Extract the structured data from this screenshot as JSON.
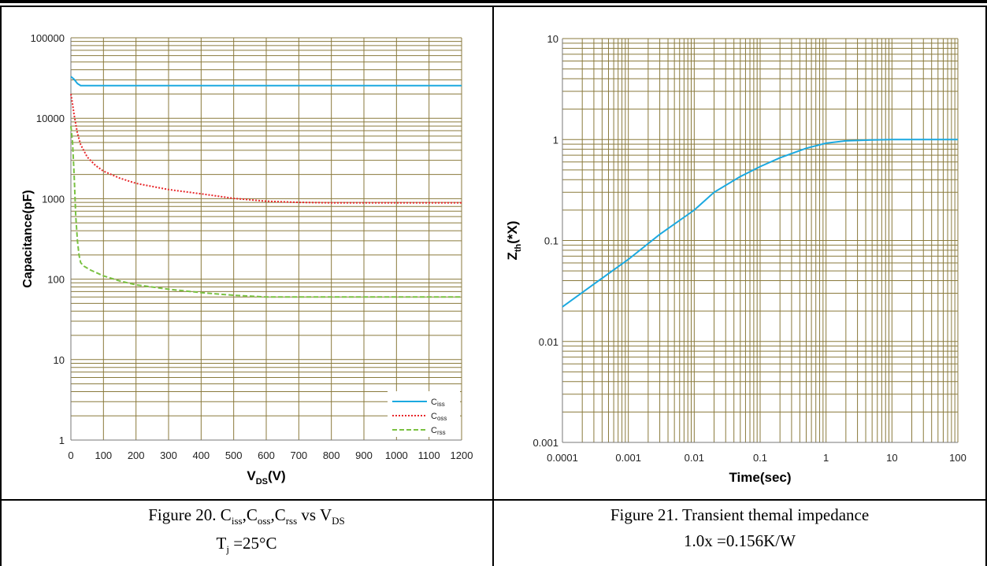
{
  "chart_data": [
    {
      "id": "cap",
      "type": "line",
      "xlabel": "V(V)",
      "xlabel_main": "V",
      "xlabel_sub": "DS",
      "xlabel_unit": "(V)",
      "ylabel": "Capacitance(pF)",
      "x_scale": "linear",
      "y_scale": "log",
      "xlim": [
        0,
        1200
      ],
      "ylim": [
        1,
        100000
      ],
      "x_ticks": [
        0,
        100,
        200,
        300,
        400,
        500,
        600,
        700,
        800,
        900,
        1000,
        1100,
        1200
      ],
      "y_tick_labels": [
        "1",
        "10",
        "100",
        "1000",
        "10000",
        "100000"
      ],
      "grid": true,
      "legend_position": "bottom-right",
      "series": [
        {
          "name": "C",
          "name_sub": "iss",
          "color": "#1ca9e0",
          "style": "solid",
          "x": [
            0,
            10,
            20,
            30,
            50,
            100,
            200,
            400,
            600,
            800,
            1000,
            1200
          ],
          "y": [
            33000,
            30500,
            27000,
            25500,
            25500,
            25500,
            25500,
            25500,
            25500,
            25500,
            25500,
            25500
          ]
        },
        {
          "name": "C",
          "name_sub": "oss",
          "color": "#e8282b",
          "style": "dotted",
          "x": [
            0,
            5,
            10,
            20,
            30,
            50,
            75,
            100,
            150,
            200,
            300,
            400,
            500,
            600,
            700,
            800,
            1000,
            1200
          ],
          "y": [
            20000,
            15000,
            11000,
            6500,
            4700,
            3300,
            2600,
            2200,
            1800,
            1550,
            1300,
            1150,
            1010,
            930,
            900,
            890,
            890,
            890
          ]
        },
        {
          "name": "C",
          "name_sub": "rss",
          "color": "#7ac142",
          "style": "dashed",
          "x": [
            0,
            5,
            10,
            15,
            20,
            25,
            30,
            40,
            60,
            100,
            150,
            200,
            300,
            400,
            500,
            600,
            700,
            800,
            1000,
            1200
          ],
          "y": [
            8000,
            5000,
            2000,
            600,
            300,
            200,
            160,
            145,
            130,
            110,
            95,
            85,
            75,
            68,
            63,
            60,
            60,
            60,
            60,
            60
          ]
        }
      ]
    },
    {
      "id": "zth",
      "type": "line",
      "xlabel": "Time(sec)",
      "ylabel": "Z(*X)",
      "ylabel_main": "Z",
      "ylabel_sub": "th",
      "ylabel_unit": "(*X)",
      "x_scale": "log",
      "y_scale": "log",
      "xlim": [
        0.0001,
        100
      ],
      "ylim": [
        0.001,
        10
      ],
      "x_tick_labels": [
        "0.0001",
        "0.001",
        "0.01",
        "0.1",
        "1",
        "10",
        "100"
      ],
      "y_tick_labels": [
        "0.001",
        "0.01",
        "0.1",
        "1",
        "10"
      ],
      "grid": true,
      "series": [
        {
          "color": "#1ca9e0",
          "style": "solid",
          "x": [
            0.0001,
            0.0003,
            0.001,
            0.003,
            0.01,
            0.02,
            0.05,
            0.1,
            0.2,
            0.5,
            1,
            2,
            5,
            10,
            100
          ],
          "y": [
            0.022,
            0.037,
            0.065,
            0.115,
            0.2,
            0.3,
            0.43,
            0.54,
            0.66,
            0.82,
            0.92,
            0.97,
            0.99,
            1.0,
            1.0
          ]
        }
      ]
    }
  ],
  "captions": {
    "fig20": {
      "prefix": "Figure 20. C",
      "s1": "iss",
      "mid1": ",C",
      "s2": "oss",
      "mid2": ",C",
      "s3": "rss",
      "mid3": " vs V",
      "s4": "DS",
      "line2_a": "T",
      "line2_sub": "j",
      "line2_b": " =25°C"
    },
    "fig21": {
      "line1": "Figure 21. Transient themal impedance",
      "line2": "1.0x =0.156K/W"
    }
  }
}
